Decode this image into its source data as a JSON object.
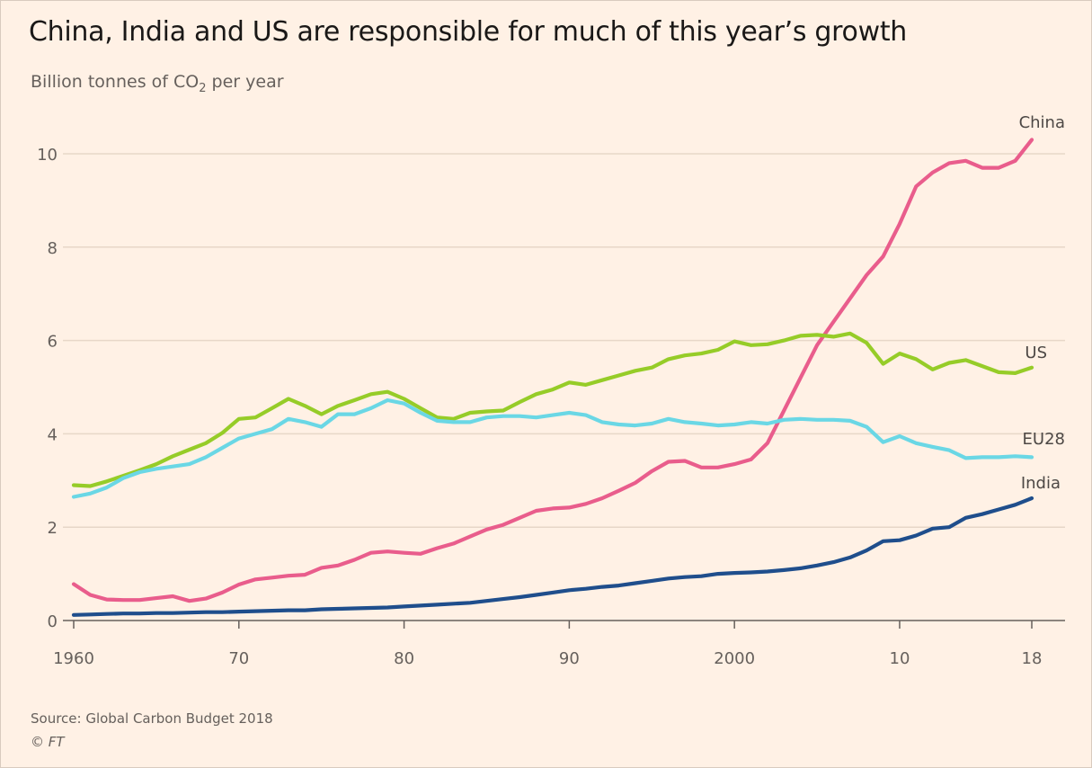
{
  "header": {
    "title": "China, India and US are responsible for much of this year’s growth",
    "subtitle_prefix": "Billion tonnes of CO",
    "subtitle_sub": "2",
    "subtitle_suffix": " per year"
  },
  "footer": {
    "source": "Source: Global Carbon Budget 2018",
    "credit": "© FT"
  },
  "chart_data": {
    "type": "line",
    "xlim": [
      1960,
      2018
    ],
    "ylim": [
      0,
      10.5
    ],
    "grid": true,
    "yticks": [
      0,
      2,
      4,
      6,
      8,
      10
    ],
    "ytick_labels": [
      "0",
      "2",
      "4",
      "6",
      "8",
      "10"
    ],
    "xticks": [
      1960,
      1970,
      1980,
      1990,
      2000,
      2010,
      2018
    ],
    "xtick_labels": [
      "1960",
      "70",
      "80",
      "90",
      "2000",
      "10",
      "18"
    ],
    "x": [
      1960,
      1961,
      1962,
      1963,
      1964,
      1965,
      1966,
      1967,
      1968,
      1969,
      1970,
      1971,
      1972,
      1973,
      1974,
      1975,
      1976,
      1977,
      1978,
      1979,
      1980,
      1981,
      1982,
      1983,
      1984,
      1985,
      1986,
      1987,
      1988,
      1989,
      1990,
      1991,
      1992,
      1993,
      1994,
      1995,
      1996,
      1997,
      1998,
      1999,
      2000,
      2001,
      2002,
      2003,
      2004,
      2005,
      2006,
      2007,
      2008,
      2009,
      2010,
      2011,
      2012,
      2013,
      2014,
      2015,
      2016,
      2017,
      2018
    ],
    "series": [
      {
        "name": "China",
        "color": "#e95d8c",
        "values": [
          0.78,
          0.55,
          0.45,
          0.44,
          0.44,
          0.48,
          0.52,
          0.42,
          0.47,
          0.6,
          0.77,
          0.88,
          0.92,
          0.96,
          0.98,
          1.13,
          1.18,
          1.3,
          1.45,
          1.48,
          1.45,
          1.43,
          1.55,
          1.65,
          1.8,
          1.95,
          2.05,
          2.2,
          2.35,
          2.4,
          2.42,
          2.5,
          2.62,
          2.78,
          2.95,
          3.2,
          3.4,
          3.42,
          3.28,
          3.28,
          3.35,
          3.45,
          3.8,
          4.5,
          5.2,
          5.9,
          6.4,
          6.9,
          7.4,
          7.8,
          8.5,
          9.3,
          9.6,
          9.8,
          9.85,
          9.7,
          9.7,
          9.85,
          10.3
        ]
      },
      {
        "name": "US",
        "color": "#96cc28",
        "values": [
          2.9,
          2.88,
          2.98,
          3.1,
          3.22,
          3.35,
          3.52,
          3.66,
          3.8,
          4.02,
          4.32,
          4.35,
          4.55,
          4.75,
          4.6,
          4.42,
          4.6,
          4.72,
          4.85,
          4.9,
          4.75,
          4.55,
          4.35,
          4.32,
          4.45,
          4.48,
          4.5,
          4.68,
          4.85,
          4.95,
          5.1,
          5.05,
          5.15,
          5.25,
          5.35,
          5.42,
          5.6,
          5.68,
          5.72,
          5.8,
          5.98,
          5.9,
          5.92,
          6.0,
          6.1,
          6.12,
          6.08,
          6.15,
          5.95,
          5.5,
          5.72,
          5.6,
          5.38,
          5.52,
          5.58,
          5.45,
          5.32,
          5.3,
          5.42
        ]
      },
      {
        "name": "EU28",
        "color": "#6ad7e5",
        "values": [
          2.65,
          2.72,
          2.85,
          3.05,
          3.18,
          3.25,
          3.3,
          3.35,
          3.5,
          3.7,
          3.9,
          4.0,
          4.1,
          4.32,
          4.25,
          4.15,
          4.42,
          4.42,
          4.55,
          4.72,
          4.65,
          4.45,
          4.28,
          4.25,
          4.25,
          4.35,
          4.38,
          4.38,
          4.35,
          4.4,
          4.45,
          4.4,
          4.25,
          4.2,
          4.18,
          4.22,
          4.32,
          4.25,
          4.22,
          4.18,
          4.2,
          4.25,
          4.22,
          4.3,
          4.32,
          4.3,
          4.3,
          4.28,
          4.15,
          3.82,
          3.95,
          3.8,
          3.72,
          3.65,
          3.48,
          3.5,
          3.5,
          3.52,
          3.5
        ]
      },
      {
        "name": "India",
        "color": "#1f4e8c",
        "values": [
          0.12,
          0.13,
          0.14,
          0.15,
          0.15,
          0.16,
          0.16,
          0.17,
          0.18,
          0.18,
          0.19,
          0.2,
          0.21,
          0.22,
          0.22,
          0.24,
          0.25,
          0.26,
          0.27,
          0.28,
          0.3,
          0.32,
          0.34,
          0.36,
          0.38,
          0.42,
          0.46,
          0.5,
          0.55,
          0.6,
          0.65,
          0.68,
          0.72,
          0.75,
          0.8,
          0.85,
          0.9,
          0.93,
          0.95,
          1.0,
          1.02,
          1.03,
          1.05,
          1.08,
          1.12,
          1.18,
          1.25,
          1.35,
          1.5,
          1.7,
          1.72,
          1.82,
          1.97,
          2.0,
          2.2,
          2.28,
          2.38,
          2.48,
          2.62
        ]
      }
    ]
  }
}
